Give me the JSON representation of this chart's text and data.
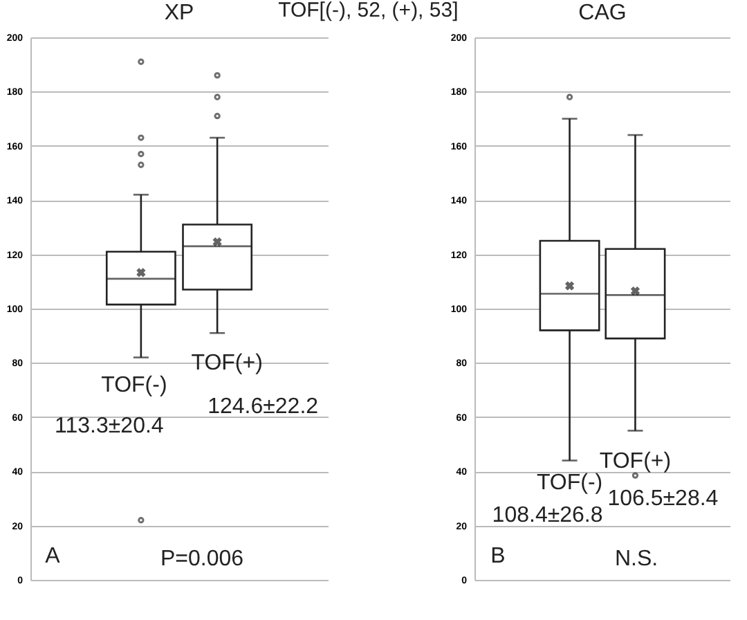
{
  "chart_data": [
    {
      "type": "box",
      "title": "XP",
      "subtitle": "TOF[(-), 52, (+), 53]",
      "categories": [
        "TOF(-)",
        "TOF(+)"
      ],
      "boxes": [
        {
          "low": 82,
          "q1": 101.5,
          "median": 111,
          "q3": 121,
          "high": 142,
          "mean": 113.3,
          "outliers": [
            191,
            163,
            157,
            153,
            22
          ]
        },
        {
          "low": 91,
          "q1": 107,
          "median": 123,
          "q3": 131,
          "high": 163,
          "mean": 124.6,
          "outliers": [
            186,
            178,
            171
          ]
        }
      ],
      "ylim": [
        0,
        200
      ],
      "yticks": [
        0,
        20,
        40,
        60,
        80,
        100,
        120,
        140,
        160,
        180,
        200
      ],
      "grid": "y",
      "tick_labels": "y",
      "annotations": [
        "113.3±20.4",
        "124.6±22.2",
        "A",
        "P=0.006"
      ]
    },
    {
      "type": "box",
      "title": "CAG",
      "categories": [
        "TOF(-)",
        "TOF(+)"
      ],
      "boxes": [
        {
          "low": 44,
          "q1": 92,
          "median": 105.5,
          "q3": 125,
          "high": 170,
          "mean": 108.4,
          "outliers": [
            178
          ]
        },
        {
          "low": 55,
          "q1": 89,
          "median": 105,
          "q3": 122,
          "high": 164,
          "mean": 106.5,
          "outliers": [
            38.5
          ]
        }
      ],
      "ylim": [
        0,
        200
      ],
      "yticks": [
        0,
        20,
        40,
        60,
        80,
        100,
        120,
        140,
        160,
        180,
        200
      ],
      "grid": "y",
      "tick_labels": "y",
      "annotations": [
        "108.4±26.8",
        "106.5±28.4",
        "B",
        "N.S."
      ]
    }
  ]
}
